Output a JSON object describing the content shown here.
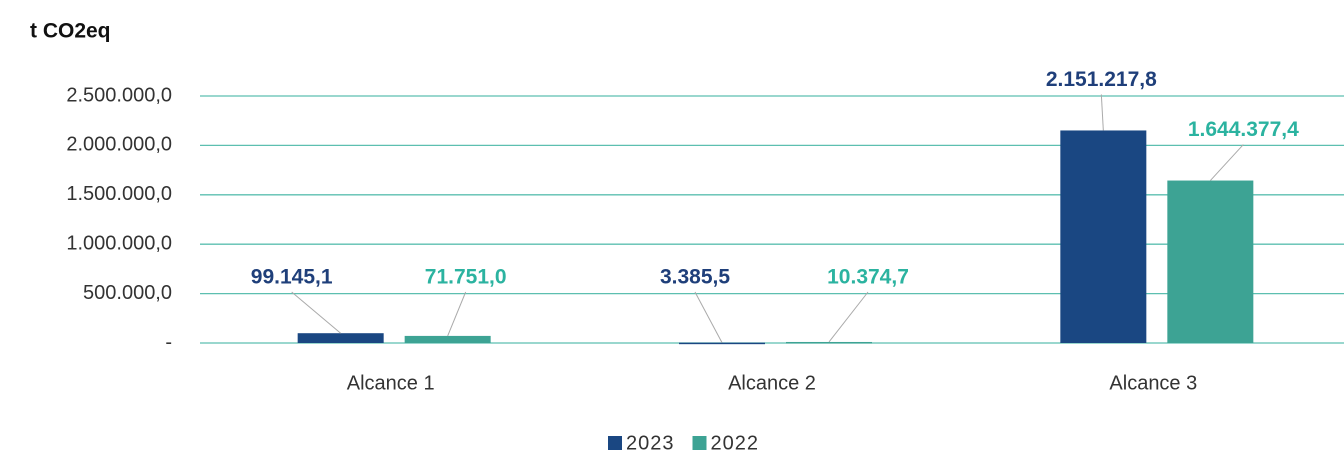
{
  "chart_data": {
    "type": "bar",
    "title": "t CO2eq",
    "categories": [
      "Alcance 1",
      "Alcance 2",
      "Alcance 3"
    ],
    "series": [
      {
        "name": "2023",
        "color": "#1a4782",
        "label_color": "#1f3f7a",
        "values": [
          99145.1,
          3385.5,
          2151217.8
        ],
        "value_labels": [
          "99.145,1",
          "3.385,5",
          "2.151.217,8"
        ]
      },
      {
        "name": "2022",
        "color": "#3da394",
        "label_color": "#2bb3a0",
        "values": [
          71751.0,
          10374.7,
          1644377.4
        ],
        "value_labels": [
          "71.751,0",
          "10.374,7",
          "1.644.377,4"
        ]
      }
    ],
    "ylim": [
      0,
      2500000
    ],
    "yticks": [
      {
        "value": 0,
        "label": "-"
      },
      {
        "value": 500000,
        "label": "500.000,0"
      },
      {
        "value": 1000000,
        "label": "1.000.000,0"
      },
      {
        "value": 1500000,
        "label": "1.500.000,0"
      },
      {
        "value": 2000000,
        "label": "2.000.000,0"
      },
      {
        "value": 2500000,
        "label": "2.500.000,0"
      }
    ],
    "grid": true,
    "legend": "bottom"
  }
}
